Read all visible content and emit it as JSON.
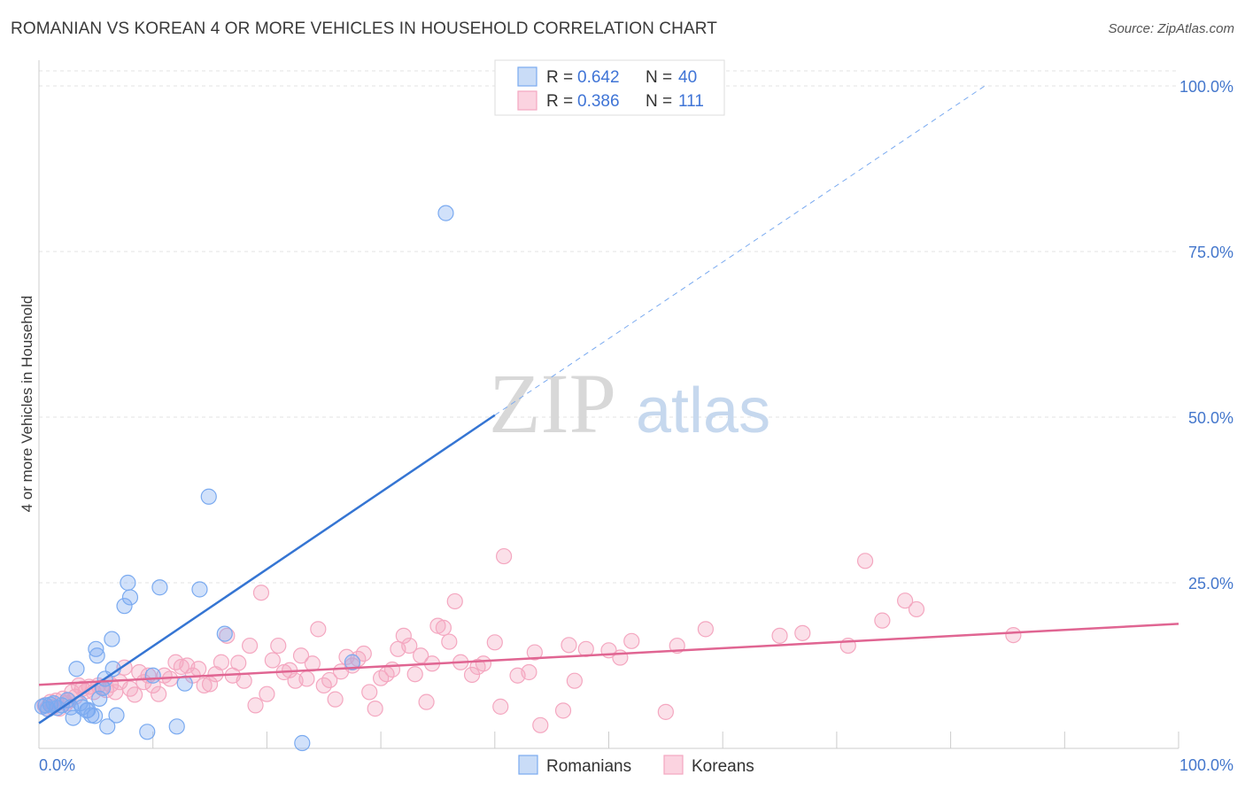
{
  "header": {
    "title": "ROMANIAN VS KOREAN 4 OR MORE VEHICLES IN HOUSEHOLD CORRELATION CHART",
    "source": "Source: ZipAtlas.com"
  },
  "watermark": {
    "zip": "ZIP",
    "atlas": "atlas"
  },
  "legend_stats": [
    {
      "r_label": "R =",
      "r_value": "0.642",
      "n_label": "N =",
      "n_value": "40",
      "color": "#7aaaf0"
    },
    {
      "r_label": "R =",
      "r_value": "0.386",
      "n_label": "N =",
      "n_value": "111",
      "color": "#f4a7c0"
    }
  ],
  "chart_data": {
    "type": "scatter",
    "title": "ROMANIAN VS KOREAN 4 OR MORE VEHICLES IN HOUSEHOLD CORRELATION CHART",
    "xlabel": "",
    "ylabel": "4 or more Vehicles in Household",
    "xlim": [
      0,
      100
    ],
    "ylim": [
      0,
      100
    ],
    "x_tick_labels": [
      "0.0%",
      "100.0%"
    ],
    "y_tick_labels": [
      "25.0%",
      "50.0%",
      "75.0%",
      "100.0%"
    ],
    "y_tick_values": [
      25,
      50,
      75,
      100
    ],
    "grid": true,
    "legend_position": "bottom",
    "series": [
      {
        "name": "Romanians",
        "color": "#7aaaf0",
        "line_color": "#3575d3",
        "r": 0.642,
        "n": 40,
        "trend": {
          "x0": 0,
          "y0": 3.8,
          "x1": 40,
          "y1": 50.3,
          "dash_x1": 83,
          "dash_y1": 100
        },
        "points": [
          [
            0.3,
            6.3
          ],
          [
            0.6,
            6.5
          ],
          [
            0.8,
            5.9
          ],
          [
            1.0,
            6.6
          ],
          [
            1.3,
            6.8
          ],
          [
            1.6,
            6.1
          ],
          [
            2.0,
            6.5
          ],
          [
            2.5,
            7.3
          ],
          [
            2.8,
            6.2
          ],
          [
            3.0,
            4.6
          ],
          [
            3.3,
            12
          ],
          [
            3.6,
            6.8
          ],
          [
            3.8,
            6.2
          ],
          [
            4.2,
            5.7
          ],
          [
            4.3,
            5.8
          ],
          [
            4.6,
            5.0
          ],
          [
            4.9,
            4.9
          ],
          [
            5.0,
            15
          ],
          [
            5.1,
            14
          ],
          [
            5.3,
            7.5
          ],
          [
            5.6,
            9.1
          ],
          [
            5.8,
            10.5
          ],
          [
            6.0,
            3.3
          ],
          [
            6.4,
            16.5
          ],
          [
            6.5,
            12
          ],
          [
            6.8,
            5.0
          ],
          [
            7.5,
            21.5
          ],
          [
            7.8,
            25
          ],
          [
            8.0,
            22.8
          ],
          [
            9.5,
            2.5
          ],
          [
            10.0,
            11.0
          ],
          [
            10.6,
            24.3
          ],
          [
            12.1,
            3.3
          ],
          [
            12.8,
            9.8
          ],
          [
            14.1,
            24
          ],
          [
            14.9,
            38
          ],
          [
            16.3,
            17.3
          ],
          [
            23.1,
            0.8
          ],
          [
            27.5,
            13.0
          ],
          [
            35.7,
            80.8
          ]
        ]
      },
      {
        "name": "Koreans",
        "color": "#f4a7c0",
        "line_color": "#e06592",
        "r": 0.386,
        "n": 111,
        "trend": {
          "x0": 0,
          "y0": 9.6,
          "x1": 100,
          "y1": 18.8
        },
        "points": [
          [
            0.5,
            6.5
          ],
          [
            0.7,
            6.0
          ],
          [
            1.0,
            7.0
          ],
          [
            1.2,
            6.2
          ],
          [
            1.5,
            7.2
          ],
          [
            1.8,
            6.0
          ],
          [
            2.1,
            7.5
          ],
          [
            2.4,
            6.8
          ],
          [
            2.6,
            7.2
          ],
          [
            2.9,
            8.5
          ],
          [
            3.2,
            7.8
          ],
          [
            3.5,
            9.5
          ],
          [
            3.8,
            9.0
          ],
          [
            4.1,
            8.6
          ],
          [
            4.4,
            9.3
          ],
          [
            4.8,
            8.5
          ],
          [
            5.2,
            9.5
          ],
          [
            5.5,
            9.2
          ],
          [
            5.9,
            8.8
          ],
          [
            6.3,
            9.6
          ],
          [
            6.7,
            8.5
          ],
          [
            7.1,
            10.0
          ],
          [
            7.5,
            12.2
          ],
          [
            8.0,
            9.0
          ],
          [
            8.4,
            8.1
          ],
          [
            8.8,
            11.5
          ],
          [
            9.2,
            10.0
          ],
          [
            9.6,
            11.0
          ],
          [
            10.0,
            9.5
          ],
          [
            10.5,
            8.2
          ],
          [
            11.0,
            11.0
          ],
          [
            11.5,
            10.5
          ],
          [
            12.0,
            13.0
          ],
          [
            12.5,
            12.3
          ],
          [
            13.0,
            12.5
          ],
          [
            13.5,
            11.0
          ],
          [
            14.0,
            12.0
          ],
          [
            14.5,
            9.5
          ],
          [
            15.0,
            9.7
          ],
          [
            15.5,
            11.2
          ],
          [
            16.0,
            13.0
          ],
          [
            16.5,
            17.0
          ],
          [
            17.0,
            11.0
          ],
          [
            17.5,
            12.9
          ],
          [
            18.0,
            10.2
          ],
          [
            18.5,
            15.5
          ],
          [
            19.0,
            6.5
          ],
          [
            19.5,
            23.5
          ],
          [
            20.0,
            8.2
          ],
          [
            20.5,
            13.3
          ],
          [
            21.0,
            15.5
          ],
          [
            21.5,
            11.5
          ],
          [
            22.0,
            11.8
          ],
          [
            22.5,
            10.2
          ],
          [
            23.0,
            14.0
          ],
          [
            23.5,
            10.5
          ],
          [
            24.0,
            12.8
          ],
          [
            24.5,
            18.0
          ],
          [
            25.0,
            9.5
          ],
          [
            25.5,
            10.3
          ],
          [
            26.0,
            7.4
          ],
          [
            26.5,
            11.6
          ],
          [
            27.0,
            13.8
          ],
          [
            27.5,
            12.5
          ],
          [
            28.0,
            13.5
          ],
          [
            28.5,
            14.3
          ],
          [
            29.0,
            8.5
          ],
          [
            29.5,
            6.0
          ],
          [
            30.0,
            10.6
          ],
          [
            30.5,
            11.2
          ],
          [
            31.0,
            11.9
          ],
          [
            31.5,
            15.0
          ],
          [
            32.0,
            17.0
          ],
          [
            32.5,
            15.5
          ],
          [
            33.0,
            11.2
          ],
          [
            33.5,
            14.0
          ],
          [
            34.0,
            7.0
          ],
          [
            34.5,
            12.8
          ],
          [
            35.0,
            18.5
          ],
          [
            35.5,
            18.2
          ],
          [
            36.0,
            16.1
          ],
          [
            36.5,
            22.2
          ],
          [
            37.0,
            13.0
          ],
          [
            38.0,
            11.1
          ],
          [
            38.5,
            12.3
          ],
          [
            39.0,
            12.8
          ],
          [
            40.0,
            16.0
          ],
          [
            40.5,
            6.3
          ],
          [
            40.8,
            29.0
          ],
          [
            42.0,
            11.0
          ],
          [
            43.0,
            11.5
          ],
          [
            43.5,
            14.5
          ],
          [
            44.0,
            3.5
          ],
          [
            46.0,
            5.7
          ],
          [
            46.5,
            15.6
          ],
          [
            47.0,
            10.2
          ],
          [
            48.0,
            15.0
          ],
          [
            50.0,
            14.8
          ],
          [
            51.0,
            13.7
          ],
          [
            52.0,
            16.2
          ],
          [
            55.0,
            5.5
          ],
          [
            56.0,
            15.5
          ],
          [
            58.5,
            18.0
          ],
          [
            65.0,
            17.0
          ],
          [
            67.0,
            17.4
          ],
          [
            71.0,
            15.5
          ],
          [
            74.0,
            19.3
          ],
          [
            85.5,
            17.1
          ],
          [
            72.5,
            28.3
          ],
          [
            76.0,
            22.3
          ],
          [
            77.0,
            21.0
          ]
        ]
      }
    ]
  }
}
